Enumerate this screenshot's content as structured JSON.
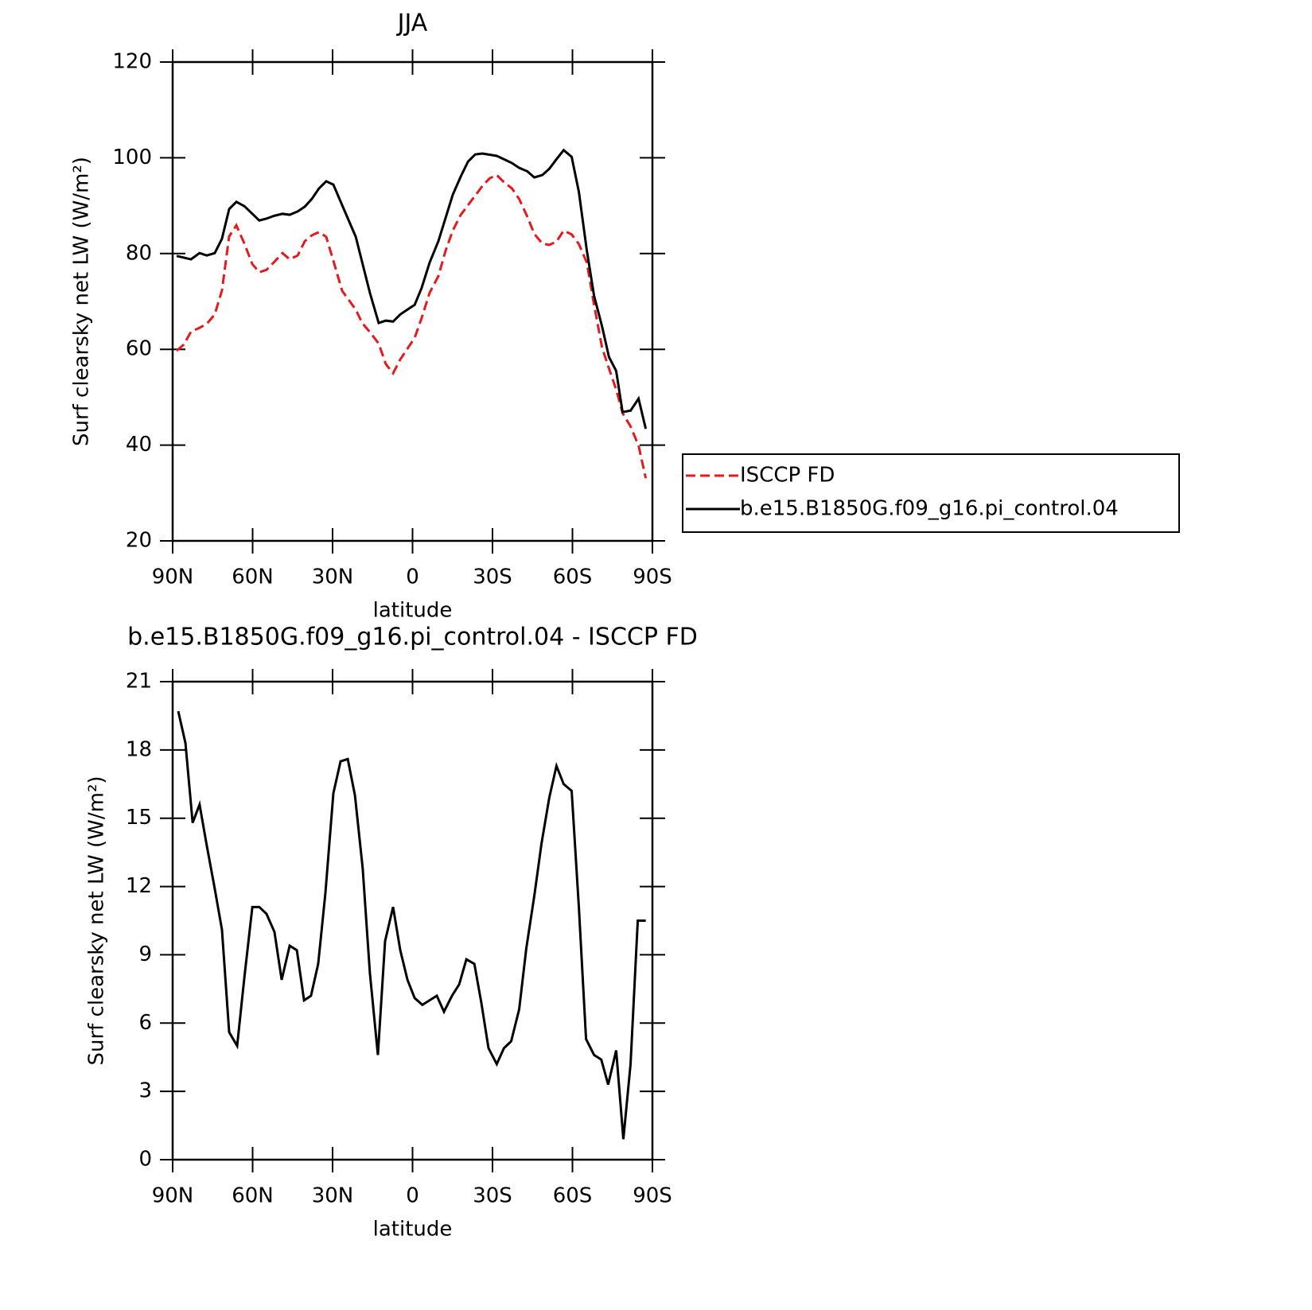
{
  "chart_data": [
    {
      "type": "line",
      "title": "JJA",
      "xlabel": "latitude",
      "ylabel": "Surf clearsky net LW (W/m²)",
      "xlim": [
        90,
        -90
      ],
      "ylim": [
        20,
        120
      ],
      "xticks": [
        {
          "value": 90,
          "label": "90N"
        },
        {
          "value": 60,
          "label": "60N"
        },
        {
          "value": 30,
          "label": "30N"
        },
        0,
        {
          "value": -30,
          "label": "30S"
        },
        {
          "value": -60,
          "label": "60S"
        },
        {
          "value": -90,
          "label": "90S"
        }
      ],
      "yticks": [
        20,
        40,
        60,
        80,
        100,
        120
      ],
      "legend": "right",
      "series": [
        {
          "name": "ISCCP FD",
          "color": "#e41a1c",
          "line_style": "dashed",
          "x": [
            88.5,
            85.8,
            83.1,
            79.9,
            77.2,
            74.2,
            71.5,
            68.8,
            66.1,
            63.1,
            60.1,
            57.5,
            54.8,
            51.8,
            48.8,
            46.1,
            43.1,
            40.4,
            37.8,
            35.1,
            32.4,
            29.7,
            26.4,
            21.3,
            18.9,
            15.7,
            12.7,
            10.0,
            7.3,
            4.6,
            -0.8,
            -3.4,
            -6.4,
            -9.7,
            -12.4,
            -15.1,
            -18.1,
            -20.8,
            -23.5,
            -26.2,
            -28.9,
            -31.6,
            -34.3,
            -37.3,
            -40.0,
            -43.0,
            -45.7,
            -48.7,
            -51.3,
            -54.0,
            -56.7,
            -59.7,
            -62.4,
            -65.4,
            -68.1,
            -71.1,
            -73.7,
            -76.4,
            -78.8,
            -81.8,
            -84.8,
            -87.5
          ],
          "values": [
            59.7,
            61.0,
            63.7,
            64.5,
            65.3,
            67.3,
            72.3,
            83.6,
            85.9,
            82.1,
            77.8,
            76.1,
            76.6,
            78.3,
            80.1,
            78.8,
            79.6,
            82.6,
            83.8,
            84.5,
            83.5,
            78.5,
            72.2,
            68.3,
            65.5,
            63.4,
            61.2,
            56.9,
            55.0,
            57.9,
            62.4,
            66.5,
            71.8,
            75.3,
            80.6,
            84.8,
            88.1,
            90.1,
            92.1,
            94.1,
            95.7,
            96.4,
            94.9,
            93.6,
            91.4,
            87.8,
            84.1,
            82.1,
            81.8,
            82.5,
            84.8,
            84.0,
            82.0,
            78.1,
            69.3,
            60.4,
            56.0,
            51.6,
            46.7,
            43.9,
            39.9,
            33.1
          ]
        },
        {
          "name": "b.e15.B1850G.f09_g16.pi_control.04",
          "color": "#000000",
          "line_style": "solid",
          "x": [
            88.5,
            83.1,
            79.9,
            77.2,
            74.2,
            71.5,
            68.8,
            66.1,
            63.1,
            57.5,
            54.8,
            51.8,
            48.8,
            46.1,
            43.1,
            40.4,
            37.8,
            35.1,
            32.4,
            29.7,
            26.4,
            21.3,
            16.0,
            12.7,
            10.0,
            7.3,
            4.6,
            -0.8,
            -3.4,
            -6.4,
            -9.7,
            -15.1,
            -18.1,
            -20.8,
            -23.5,
            -26.2,
            -31.6,
            -34.3,
            -37.3,
            -40.0,
            -43.0,
            -45.7,
            -48.7,
            -51.3,
            -54.0,
            -56.7,
            -59.7,
            -62.4,
            -65.4,
            -68.1,
            -71.1,
            -73.7,
            -76.4,
            -78.8,
            -81.8,
            -84.8,
            -87.5
          ],
          "values": [
            79.5,
            78.8,
            80.1,
            79.6,
            80.1,
            83.1,
            89.3,
            90.8,
            89.9,
            86.9,
            87.3,
            87.9,
            88.3,
            88.1,
            88.8,
            89.8,
            91.4,
            93.6,
            95.1,
            94.4,
            90.1,
            83.5,
            71.8,
            65.5,
            66.0,
            65.8,
            67.3,
            69.3,
            72.8,
            78.1,
            82.6,
            92.3,
            96.1,
            99.2,
            100.7,
            100.9,
            100.4,
            99.7,
            98.9,
            97.9,
            97.2,
            95.9,
            96.4,
            97.7,
            99.7,
            101.6,
            100.2,
            92.9,
            80.6,
            71.2,
            64.8,
            58.4,
            55.5,
            46.9,
            47.2,
            49.7,
            43.4
          ]
        }
      ]
    },
    {
      "type": "line",
      "title": "b.e15.B1850G.f09_g16.pi_control.04 - ISCCP FD",
      "xlabel": "latitude",
      "ylabel": "Surf clearsky net LW (W/m²)",
      "xlim": [
        90,
        -90
      ],
      "ylim": [
        0,
        21
      ],
      "xticks": [
        {
          "value": 90,
          "label": "90N"
        },
        {
          "value": 60,
          "label": "60N"
        },
        {
          "value": 30,
          "label": "30N"
        },
        0,
        {
          "value": -30,
          "label": "30S"
        },
        {
          "value": -60,
          "label": "60S"
        },
        {
          "value": -90,
          "label": "90S"
        }
      ],
      "yticks": [
        0,
        3,
        6,
        9,
        12,
        15,
        18,
        21
      ],
      "color": "#000000",
      "x": [
        87.9,
        85.2,
        82.5,
        79.9,
        77.2,
        74.2,
        71.5,
        68.8,
        65.8,
        63.1,
        60.1,
        57.5,
        54.8,
        51.8,
        49.1,
        46.1,
        43.4,
        40.7,
        38.1,
        35.4,
        32.7,
        29.7,
        27.0,
        24.3,
        21.6,
        18.7,
        16.0,
        13.0,
        10.3,
        7.3,
        4.6,
        1.9,
        -0.8,
        -3.7,
        -6.4,
        -9.1,
        -11.8,
        -14.8,
        -17.5,
        -20.2,
        -23.2,
        -25.8,
        -28.5,
        -31.6,
        -34.3,
        -37.0,
        -40.0,
        -42.7,
        -45.7,
        -48.4,
        -51.3,
        -54.0,
        -56.7,
        -59.7,
        -62.4,
        -65.1,
        -68.1,
        -70.8,
        -73.4,
        -76.4,
        -79.1,
        -81.8,
        -84.5,
        -87.5
      ],
      "values": [
        19.7,
        18.3,
        14.8,
        15.6,
        13.8,
        11.9,
        10.1,
        5.6,
        5.0,
        8.0,
        11.1,
        11.1,
        10.8,
        10.0,
        7.9,
        9.4,
        9.2,
        7.0,
        7.2,
        8.6,
        11.7,
        16.1,
        17.5,
        17.6,
        16.0,
        12.8,
        8.2,
        4.6,
        9.6,
        11.1,
        9.2,
        7.9,
        7.1,
        6.8,
        7.0,
        7.2,
        6.5,
        7.2,
        7.7,
        8.8,
        8.6,
        6.9,
        4.9,
        4.2,
        4.9,
        5.2,
        6.6,
        9.3,
        11.6,
        13.9,
        15.9,
        17.3,
        16.5,
        16.2,
        11.1,
        5.3,
        4.6,
        4.4,
        3.3,
        4.8,
        0.9,
        4.2,
        10.5,
        10.5
      ]
    }
  ]
}
